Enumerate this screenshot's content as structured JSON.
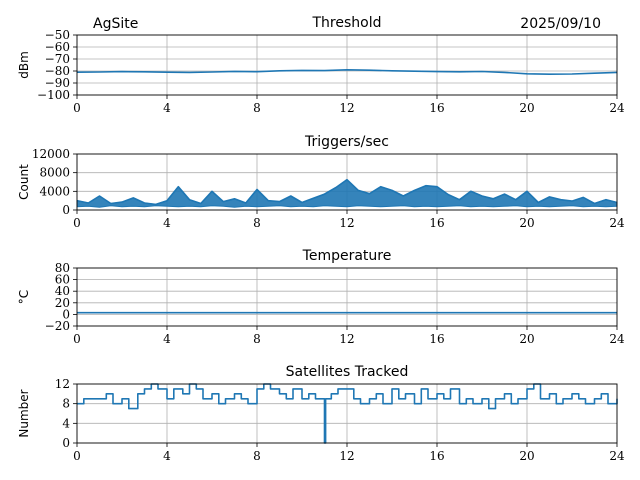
{
  "header": {
    "site": "AgSite",
    "date": "2025/09/10"
  },
  "colors": {
    "series": "#1f77b4",
    "grid": "#b0b0b0",
    "axis": "#000000"
  },
  "chart_data": [
    {
      "type": "line",
      "title": "Threshold",
      "ylabel": "dBm",
      "xlim": [
        0,
        24
      ],
      "ylim": [
        -100,
        -50
      ],
      "xticks": [
        0,
        4,
        8,
        12,
        16,
        20,
        24
      ],
      "yticks": [
        -100,
        -90,
        -80,
        -70,
        -60,
        -50
      ],
      "xtick_labels": [
        "0",
        "4",
        "8",
        "12",
        "16",
        "20",
        "24"
      ],
      "ytick_labels": [
        "−100",
        "−90",
        "−80",
        "−70",
        "−60",
        "−50"
      ],
      "grid": true,
      "series": [
        {
          "x": [
            0,
            1,
            2,
            3,
            4,
            5,
            6,
            7,
            8,
            9,
            10,
            11,
            12,
            13,
            14,
            15,
            16,
            17,
            18,
            19,
            20,
            21,
            22,
            23,
            24
          ],
          "y": [
            -81,
            -80.8,
            -80.5,
            -80.7,
            -81,
            -81.2,
            -80.8,
            -80.3,
            -80.6,
            -79.8,
            -79.5,
            -79.7,
            -79,
            -79.3,
            -79.8,
            -80.2,
            -80.5,
            -80.7,
            -80.4,
            -81.2,
            -82.3,
            -82.7,
            -82.5,
            -81.8,
            -81.2
          ]
        }
      ]
    },
    {
      "type": "line",
      "title": "Triggers/sec",
      "ylabel": "Count",
      "xlim": [
        0,
        24
      ],
      "ylim": [
        0,
        12000
      ],
      "xticks": [
        0,
        4,
        8,
        12,
        16,
        20,
        24
      ],
      "yticks": [
        0,
        4000,
        8000,
        12000
      ],
      "xtick_labels": [
        "0",
        "4",
        "8",
        "12",
        "16",
        "20",
        "24"
      ],
      "ytick_labels": [
        "0",
        "4000",
        "8000",
        "12000"
      ],
      "grid": true,
      "series": [
        {
          "x": [
            0,
            0.5,
            1,
            1.5,
            2,
            2.5,
            3,
            3.5,
            4,
            4.5,
            5,
            5.5,
            6,
            6.5,
            7,
            7.5,
            8,
            8.5,
            9,
            9.5,
            10,
            10.5,
            11,
            11.5,
            12,
            12.5,
            13,
            13.5,
            14,
            14.5,
            15,
            15.5,
            16,
            16.5,
            17,
            17.5,
            18,
            18.5,
            19,
            19.5,
            20,
            20.5,
            21,
            21.5,
            22,
            22.5,
            23,
            23.5,
            24
          ],
          "y": [
            2000,
            1500,
            3000,
            1400,
            1700,
            2600,
            1500,
            1200,
            2000,
            5000,
            2200,
            1400,
            4000,
            1800,
            2400,
            1500,
            4400,
            2000,
            1800,
            3000,
            1600,
            2500,
            3400,
            4800,
            6500,
            4200,
            3500,
            5000,
            4200,
            3000,
            4200,
            5200,
            5000,
            3300,
            2200,
            4000,
            3000,
            2400,
            3400,
            2200,
            4000,
            1600,
            2800,
            2200,
            1900,
            2700,
            1400,
            2200,
            1600
          ],
          "band_min": [
            700,
            800,
            600,
            900,
            700,
            800,
            700,
            900,
            800,
            700,
            800,
            700,
            900,
            800,
            600,
            800,
            700,
            800,
            900,
            700,
            800,
            700,
            900,
            800,
            700,
            900,
            800,
            700,
            800,
            900,
            700,
            800,
            700,
            800,
            900,
            700,
            800,
            700,
            800,
            900,
            700,
            800,
            700,
            800,
            900,
            700,
            800,
            700,
            800
          ]
        }
      ]
    },
    {
      "type": "line",
      "title": "Temperature",
      "ylabel": "°C",
      "xlim": [
        0,
        24
      ],
      "ylim": [
        -20,
        80
      ],
      "xticks": [
        0,
        4,
        8,
        12,
        16,
        20,
        24
      ],
      "yticks": [
        -20,
        0,
        20,
        40,
        60,
        80
      ],
      "xtick_labels": [
        "0",
        "4",
        "8",
        "12",
        "16",
        "20",
        "24"
      ],
      "ytick_labels": [
        "−20",
        "0",
        "20",
        "40",
        "60",
        "80"
      ],
      "grid": true,
      "series": [
        {
          "x": [
            0,
            24
          ],
          "y": [
            3,
            3
          ]
        }
      ]
    },
    {
      "type": "line",
      "title": "Satellites Tracked",
      "ylabel": "Number",
      "xlim": [
        0,
        24
      ],
      "ylim": [
        0,
        12
      ],
      "xticks": [
        0,
        4,
        8,
        12,
        16,
        20,
        24
      ],
      "yticks": [
        0,
        4,
        8,
        12
      ],
      "xtick_labels": [
        "0",
        "4",
        "8",
        "12",
        "16",
        "20",
        "24"
      ],
      "ytick_labels": [
        "0",
        "4",
        "8",
        "12"
      ],
      "grid": true,
      "step": true,
      "series": [
        {
          "x": [
            0,
            0.3,
            0.6,
            1,
            1.3,
            1.6,
            2,
            2.3,
            2.7,
            3,
            3.3,
            3.6,
            4,
            4.3,
            4.7,
            5,
            5.3,
            5.6,
            6,
            6.3,
            6.6,
            7,
            7.3,
            7.6,
            8,
            8.3,
            8.6,
            9,
            9.3,
            9.6,
            10,
            10.3,
            10.6,
            10.95,
            11,
            11.05,
            11.3,
            11.6,
            12,
            12.3,
            12.6,
            13,
            13.3,
            13.6,
            14,
            14.3,
            14.6,
            15,
            15.3,
            15.6,
            16,
            16.3,
            16.6,
            17,
            17.3,
            17.6,
            18,
            18.3,
            18.6,
            19,
            19.3,
            19.6,
            20,
            20.3,
            20.6,
            21,
            21.3,
            21.6,
            22,
            22.3,
            22.6,
            23,
            23.3,
            23.6,
            24
          ],
          "y": [
            8,
            9,
            9,
            9,
            10,
            8,
            9,
            7,
            10,
            11,
            12,
            11,
            9,
            11,
            10,
            12,
            11,
            9,
            10,
            8,
            9,
            10,
            9,
            8,
            11,
            12,
            11,
            10,
            9,
            11,
            9,
            10,
            9,
            9,
            0,
            9,
            10,
            11,
            11,
            9,
            8,
            9,
            10,
            8,
            11,
            9,
            10,
            8,
            11,
            9,
            10,
            9,
            11,
            8,
            9,
            8,
            9,
            7,
            9,
            10,
            8,
            9,
            11,
            12,
            9,
            10,
            8,
            9,
            10,
            9,
            8,
            9,
            10,
            8,
            9
          ]
        }
      ]
    }
  ]
}
